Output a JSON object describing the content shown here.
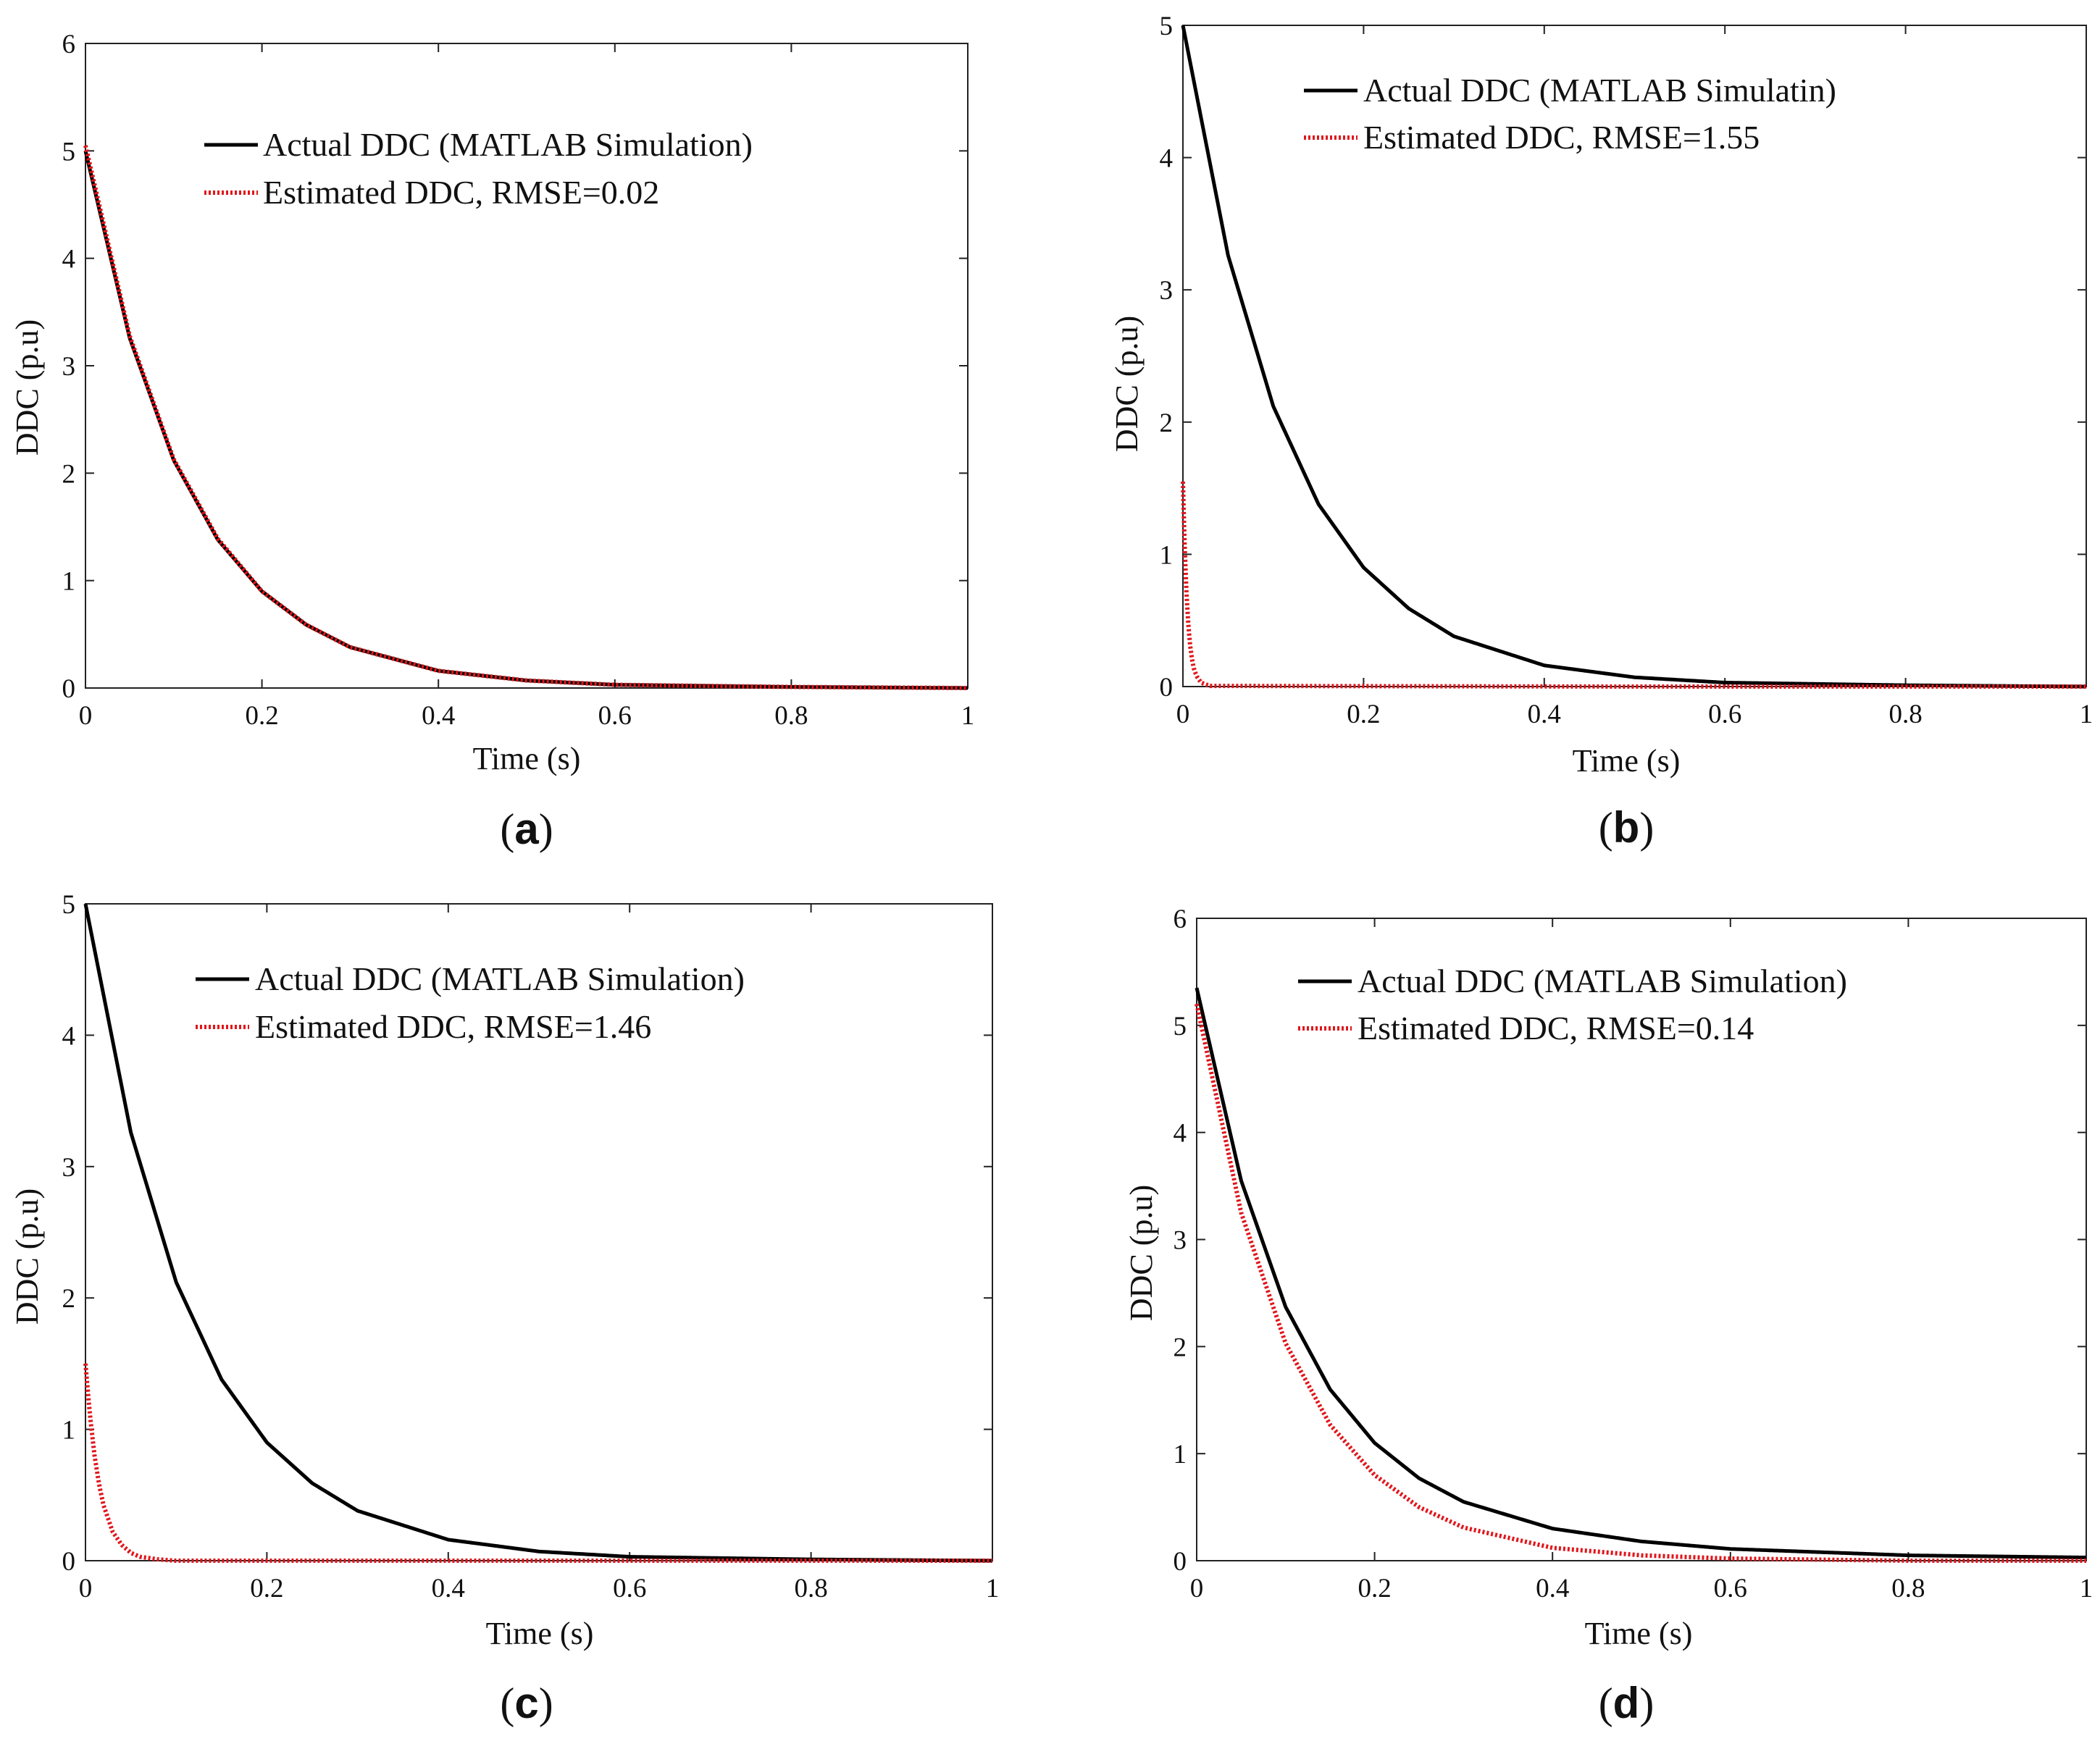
{
  "colors": {
    "actual": "#000000",
    "estimated": "#e0161b",
    "axes": "#222222",
    "background": "#ffffff"
  },
  "chart_data": [
    {
      "id": "a",
      "type": "line",
      "caption": "a",
      "xlabel": "Time (s)",
      "ylabel": "DDC (p.u)",
      "xlim": [
        0,
        1
      ],
      "ylim": [
        0,
        6
      ],
      "xticks": [
        0,
        0.2,
        0.4,
        0.6,
        0.8,
        1
      ],
      "xtick_labels": [
        "0",
        "0.2",
        "0.4",
        "0.6",
        "0.8",
        "1"
      ],
      "yticks": [
        0,
        1,
        2,
        3,
        4,
        5,
        6
      ],
      "ytick_labels": [
        "0",
        "1",
        "2",
        "3",
        "4",
        "5",
        "6"
      ],
      "grid": false,
      "legend": "top-center",
      "series": [
        {
          "name": "Actual DDC (MATLAB Simulation)",
          "style": "solid",
          "x": [
            0,
            0.05,
            0.1,
            0.15,
            0.2,
            0.25,
            0.3,
            0.4,
            0.5,
            0.6,
            0.8,
            1
          ],
          "y": [
            5,
            3.26,
            2.12,
            1.38,
            0.9,
            0.59,
            0.38,
            0.16,
            0.07,
            0.03,
            0.01,
            0
          ]
        },
        {
          "name": "Estimated DDC, RMSE=0.02",
          "style": "dotted",
          "x": [
            0,
            0.05,
            0.1,
            0.15,
            0.2,
            0.25,
            0.3,
            0.4,
            0.5,
            0.6,
            0.8,
            1
          ],
          "y": [
            5.05,
            3.28,
            2.13,
            1.39,
            0.9,
            0.59,
            0.38,
            0.16,
            0.07,
            0.03,
            0.01,
            0
          ]
        }
      ]
    },
    {
      "id": "b",
      "type": "line",
      "caption": "b",
      "xlabel": "Time (s)",
      "ylabel": "DDC (p.u)",
      "xlim": [
        0,
        1
      ],
      "ylim": [
        0,
        5
      ],
      "xticks": [
        0,
        0.2,
        0.4,
        0.6,
        0.8,
        1
      ],
      "xtick_labels": [
        "0",
        "0.2",
        "0.4",
        "0.6",
        "0.8",
        "1"
      ],
      "yticks": [
        0,
        1,
        2,
        3,
        4,
        5
      ],
      "ytick_labels": [
        "0",
        "1",
        "2",
        "3",
        "4",
        "5"
      ],
      "grid": false,
      "legend": "top-right",
      "series": [
        {
          "name": "Actual DDC (MATLAB Simulatin)",
          "style": "solid",
          "x": [
            0,
            0.05,
            0.1,
            0.15,
            0.2,
            0.25,
            0.3,
            0.4,
            0.5,
            0.6,
            0.8,
            1
          ],
          "y": [
            5,
            3.26,
            2.12,
            1.38,
            0.9,
            0.59,
            0.38,
            0.16,
            0.07,
            0.03,
            0.01,
            0
          ]
        },
        {
          "name": "Estimated DDC, RMSE=1.55",
          "style": "dotted",
          "x": [
            0,
            0.002,
            0.004,
            0.006,
            0.008,
            0.01,
            0.012,
            0.015,
            0.02,
            0.03,
            0.5,
            1
          ],
          "y": [
            1.55,
            1.05,
            0.7,
            0.47,
            0.31,
            0.21,
            0.14,
            0.08,
            0.03,
            0.005,
            0,
            0
          ]
        }
      ]
    },
    {
      "id": "c",
      "type": "line",
      "caption": "c",
      "xlabel": "Time (s)",
      "ylabel": "DDC (p.u)",
      "xlim": [
        0,
        1
      ],
      "ylim": [
        0,
        5
      ],
      "xticks": [
        0,
        0.2,
        0.4,
        0.6,
        0.8,
        1
      ],
      "xtick_labels": [
        "0",
        "0.2",
        "0.4",
        "0.6",
        "0.8",
        "1"
      ],
      "yticks": [
        0,
        1,
        2,
        3,
        4,
        5
      ],
      "ytick_labels": [
        "0",
        "1",
        "2",
        "3",
        "4",
        "5"
      ],
      "grid": false,
      "legend": "top-center",
      "series": [
        {
          "name": "Actual DDC (MATLAB Simulation)",
          "style": "solid",
          "x": [
            0,
            0.05,
            0.1,
            0.15,
            0.2,
            0.25,
            0.3,
            0.4,
            0.5,
            0.6,
            0.8,
            1
          ],
          "y": [
            5,
            3.26,
            2.12,
            1.38,
            0.9,
            0.59,
            0.38,
            0.16,
            0.07,
            0.03,
            0.01,
            0
          ]
        },
        {
          "name": "Estimated DDC, RMSE=1.46",
          "style": "dotted",
          "x": [
            0,
            0.005,
            0.01,
            0.015,
            0.02,
            0.03,
            0.04,
            0.05,
            0.06,
            0.08,
            0.1,
            1
          ],
          "y": [
            1.5,
            1.1,
            0.8,
            0.58,
            0.42,
            0.22,
            0.12,
            0.06,
            0.03,
            0.01,
            0,
            0
          ]
        }
      ]
    },
    {
      "id": "d",
      "type": "line",
      "caption": "d",
      "xlabel": "Time (s)",
      "ylabel": "DDC (p.u)",
      "xlim": [
        0,
        1
      ],
      "ylim": [
        0,
        6
      ],
      "xticks": [
        0,
        0.2,
        0.4,
        0.6,
        0.8,
        1
      ],
      "xtick_labels": [
        "0",
        "0.2",
        "0.4",
        "0.6",
        "0.8",
        "1"
      ],
      "yticks": [
        0,
        1,
        2,
        3,
        4,
        5,
        6
      ],
      "ytick_labels": [
        "0",
        "1",
        "2",
        "3",
        "4",
        "5",
        "6"
      ],
      "grid": false,
      "legend": "top-center",
      "series": [
        {
          "name": "Actual DDC (MATLAB Simulation)",
          "style": "solid",
          "x": [
            0,
            0.05,
            0.1,
            0.15,
            0.2,
            0.25,
            0.3,
            0.4,
            0.5,
            0.6,
            0.8,
            1
          ],
          "y": [
            5.35,
            3.55,
            2.37,
            1.6,
            1.1,
            0.77,
            0.55,
            0.3,
            0.18,
            0.11,
            0.05,
            0.03
          ]
        },
        {
          "name": "Estimated DDC, RMSE=0.14",
          "style": "dotted",
          "x": [
            0,
            0.05,
            0.1,
            0.15,
            0.2,
            0.25,
            0.3,
            0.4,
            0.5,
            0.6,
            0.8,
            1
          ],
          "y": [
            5.2,
            3.25,
            2.03,
            1.27,
            0.8,
            0.5,
            0.31,
            0.12,
            0.05,
            0.02,
            0,
            0
          ]
        }
      ]
    }
  ]
}
